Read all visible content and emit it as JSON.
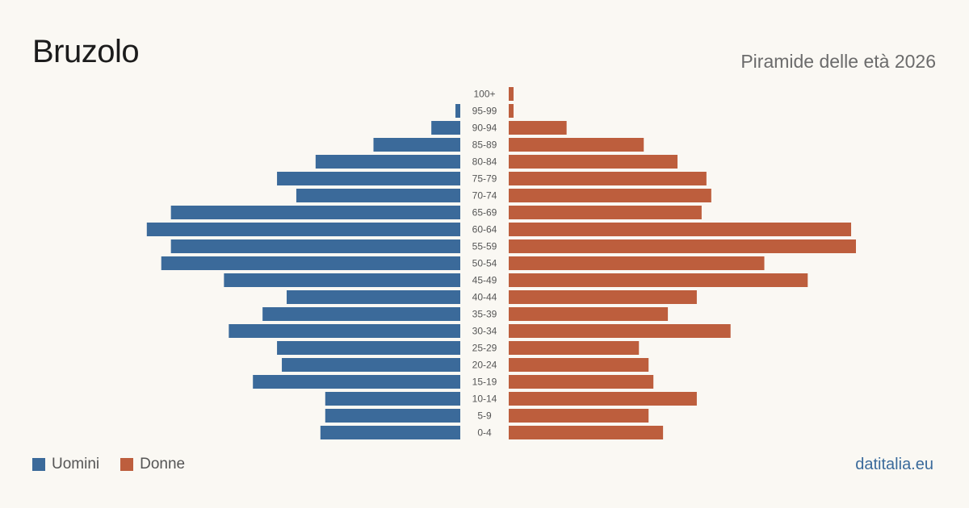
{
  "header": {
    "title": "Bruzolo",
    "subtitle": "Piramide delle età 2026"
  },
  "legend": {
    "men_label": "Uomini",
    "women_label": "Donne"
  },
  "brand": "datitalia.eu",
  "colors": {
    "men": "#3b6a9a",
    "women": "#bd5e3d"
  },
  "chart_data": {
    "type": "bar",
    "orientation": "horizontal-pyramid",
    "title": "Piramide delle età 2026",
    "categories": [
      "100+",
      "95-99",
      "90-94",
      "85-89",
      "80-84",
      "75-79",
      "70-74",
      "65-69",
      "60-64",
      "55-59",
      "50-54",
      "45-49",
      "40-44",
      "35-39",
      "30-34",
      "25-29",
      "20-24",
      "15-19",
      "10-14",
      "5-9",
      "0-4"
    ],
    "series": [
      {
        "name": "Uomini",
        "values": [
          0,
          1,
          6,
          18,
          30,
          38,
          34,
          60,
          65,
          60,
          62,
          49,
          36,
          41,
          48,
          38,
          37,
          43,
          28,
          28,
          29
        ]
      },
      {
        "name": "Donne",
        "values": [
          1,
          1,
          12,
          28,
          35,
          41,
          42,
          40,
          71,
          72,
          53,
          62,
          39,
          33,
          46,
          27,
          29,
          30,
          39,
          29,
          32
        ]
      }
    ],
    "legend_position": "bottom-left",
    "grid": false
  }
}
